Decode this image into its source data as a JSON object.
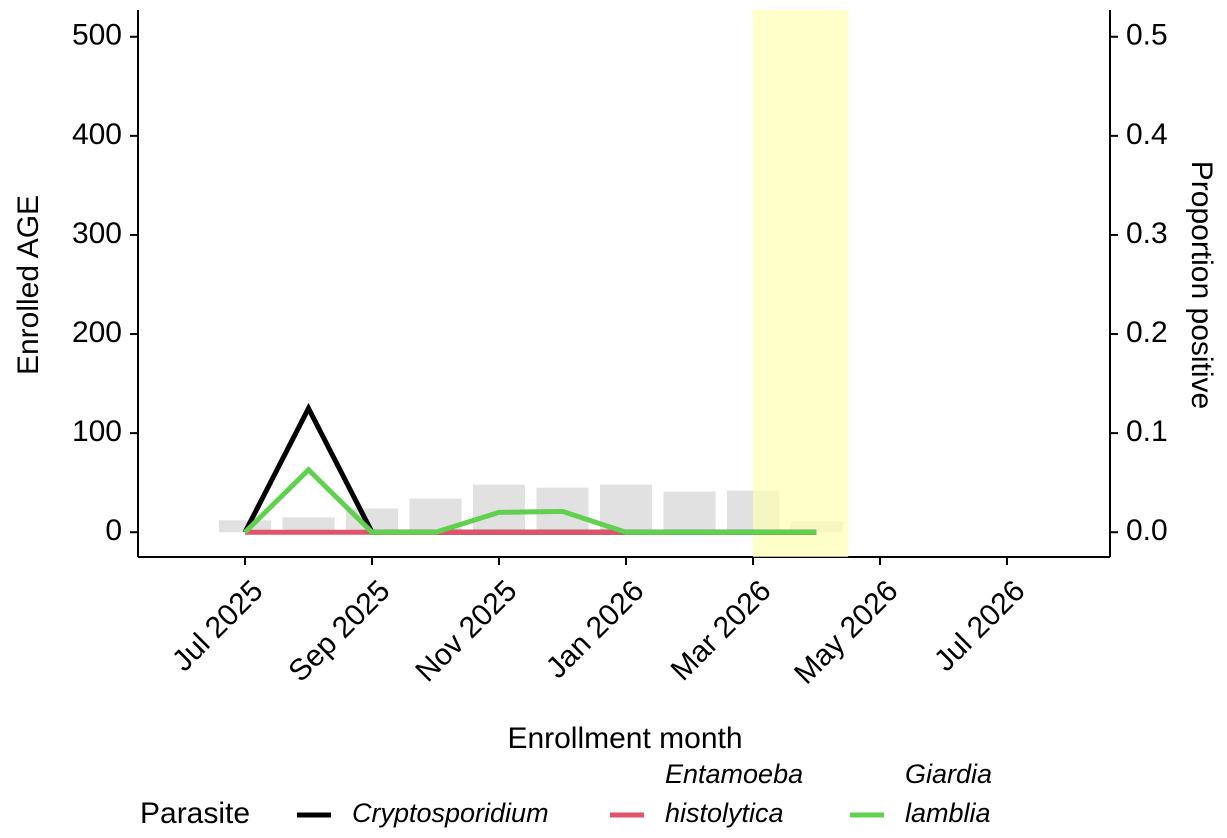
{
  "chart_data": {
    "type": "bar-line",
    "x_label": "Enrollment month",
    "y_label": "Enrolled AGE",
    "y2_label": "Proportion positive",
    "legend_title": "Parasite",
    "legend": "bottom",
    "x": [
      "2025-07",
      "2025-08",
      "2025-09",
      "2025-10",
      "2025-11",
      "2025-12",
      "2026-01",
      "2026-02",
      "2026-03",
      "2026-04"
    ],
    "bars": {
      "color": "#d9d9d9",
      "values": [
        12,
        15,
        24,
        34,
        48,
        45,
        48,
        41,
        42,
        11
      ]
    },
    "series": [
      {
        "name": "Cryptosporidium",
        "color": "#000000",
        "axis": "y2",
        "values": [
          0,
          0.125,
          0,
          0,
          0,
          0,
          0,
          0,
          0,
          0
        ]
      },
      {
        "name": "Entamoeba histolytica",
        "color": "#df536b",
        "axis": "y2",
        "values": [
          0,
          0,
          0,
          0,
          0,
          0,
          0,
          null,
          null,
          null
        ]
      },
      {
        "name": "Giardia lamblia",
        "color": "#61d04f",
        "axis": "y2",
        "values": [
          0,
          0.063,
          0,
          0,
          0.02,
          0.021,
          0,
          0,
          0,
          0
        ]
      }
    ],
    "highlight": {
      "x": [
        "2026-03",
        "2026-04"
      ],
      "color": "#ffffb3"
    },
    "xlim": [
      "2025-05",
      "2026-08"
    ],
    "xticks": [
      {
        "value": "2025-07",
        "label": "Jul 2025"
      },
      {
        "value": "2025-09",
        "label": "Sep 2025"
      },
      {
        "value": "2025-11",
        "label": "Nov 2025"
      },
      {
        "value": "2026-01",
        "label": "Jan 2026"
      },
      {
        "value": "2026-03",
        "label": "Mar 2026"
      },
      {
        "value": "2026-05",
        "label": "May 2026"
      },
      {
        "value": "2026-07",
        "label": "Jul 2026"
      }
    ],
    "ylim": [
      -25,
      527
    ],
    "yticks": [
      0,
      100,
      200,
      300,
      400,
      500
    ],
    "y2lim": [
      -0.025,
      0.527
    ],
    "y2ticks": [
      {
        "value": 0,
        "label": "0.0"
      },
      0.1,
      0.2,
      0.3,
      0.4,
      0.5
    ]
  }
}
